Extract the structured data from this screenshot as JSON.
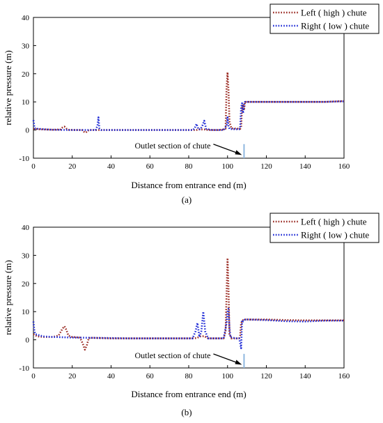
{
  "colors": {
    "left": "#9a2a22",
    "right": "#1f2bd6",
    "outlet_line": "#8fb7df",
    "axis": "#000000"
  },
  "chart_data": [
    {
      "type": "line",
      "panel_label": "(a)",
      "xlabel": "Distance from entrance end (m)",
      "ylabel": "relative pressure (m)",
      "xlim": [
        0,
        160
      ],
      "ylim": [
        -10,
        40
      ],
      "x_ticks": [
        0,
        20,
        40,
        60,
        80,
        100,
        120,
        140,
        160
      ],
      "y_ticks": [
        -10,
        0,
        10,
        20,
        30,
        40
      ],
      "grid": false,
      "legend_position": "top-right",
      "annotation": {
        "text": "Outlet section of chute",
        "x": 108.5,
        "y": -6
      },
      "outlet_x": 108.5,
      "series": [
        {
          "name": "Left ( high ) chute",
          "color_key": "left",
          "points": [
            [
              0,
              0.4
            ],
            [
              5,
              0.2
            ],
            [
              10,
              0.1
            ],
            [
              14,
              0.2
            ],
            [
              15,
              0.9
            ],
            [
              16,
              1.2
            ],
            [
              17,
              0.5
            ],
            [
              18,
              0.1
            ],
            [
              22,
              0.0
            ],
            [
              25,
              0.0
            ],
            [
              26,
              -0.6
            ],
            [
              27,
              -0.9
            ],
            [
              28,
              -0.2
            ],
            [
              29,
              0.0
            ],
            [
              40,
              0.0
            ],
            [
              60,
              0.0
            ],
            [
              80,
              0.0
            ],
            [
              84,
              0.0
            ],
            [
              85,
              0.3
            ],
            [
              86,
              0.2
            ],
            [
              88,
              0.2
            ],
            [
              90,
              0.0
            ],
            [
              95,
              0.0
            ],
            [
              98,
              0.2
            ],
            [
              99,
              0.5
            ],
            [
              99.5,
              15
            ],
            [
              100,
              20.5
            ],
            [
              100.5,
              14
            ],
            [
              101,
              3
            ],
            [
              102,
              0.6
            ],
            [
              105,
              0.5
            ],
            [
              106.5,
              0.4
            ],
            [
              107,
              1
            ],
            [
              107.5,
              8
            ],
            [
              108,
              9
            ],
            [
              108.5,
              7
            ],
            [
              109,
              10
            ],
            [
              110,
              10
            ],
            [
              120,
              10
            ],
            [
              130,
              10
            ],
            [
              140,
              10
            ],
            [
              150,
              10
            ],
            [
              160,
              10.3
            ]
          ]
        },
        {
          "name": "Right ( low ) chute",
          "color_key": "right",
          "points": [
            [
              0,
              3.5
            ],
            [
              0.5,
              1
            ],
            [
              1,
              0.5
            ],
            [
              5,
              0.3
            ],
            [
              10,
              0.1
            ],
            [
              20,
              0.0
            ],
            [
              32,
              0.0
            ],
            [
              33,
              1.5
            ],
            [
              33.5,
              4.5
            ],
            [
              34,
              0.5
            ],
            [
              35,
              0.0
            ],
            [
              50,
              0.0
            ],
            [
              70,
              0.0
            ],
            [
              82,
              0.0
            ],
            [
              83,
              0.5
            ],
            [
              84,
              2.2
            ],
            [
              85,
              0.3
            ],
            [
              86,
              0.2
            ],
            [
              87,
              1.5
            ],
            [
              88,
              3.3
            ],
            [
              89,
              0.4
            ],
            [
              92,
              0.0
            ],
            [
              98,
              0.0
            ],
            [
              99.5,
              1.5
            ],
            [
              100,
              4.5
            ],
            [
              100.5,
              1.5
            ],
            [
              101,
              0.4
            ],
            [
              104,
              0.3
            ],
            [
              106,
              0.3
            ],
            [
              106.5,
              0.6
            ],
            [
              107,
              8
            ],
            [
              107.5,
              9.5
            ],
            [
              108,
              6
            ],
            [
              108.5,
              9
            ],
            [
              109,
              10
            ],
            [
              110,
              10
            ],
            [
              120,
              10
            ],
            [
              130,
              10
            ],
            [
              140,
              10
            ],
            [
              150,
              10
            ],
            [
              160,
              10.2
            ]
          ]
        }
      ],
      "legend": [
        {
          "label": "Left ( high ) chute",
          "color_key": "left"
        },
        {
          "label": "Right ( low ) chute",
          "color_key": "right"
        }
      ]
    },
    {
      "type": "line",
      "panel_label": "(b)",
      "xlabel": "Distance from entrance end (m)",
      "ylabel": "relative pressure (m)",
      "xlim": [
        0,
        160
      ],
      "ylim": [
        -10,
        40
      ],
      "x_ticks": [
        0,
        20,
        40,
        60,
        80,
        100,
        120,
        140,
        160
      ],
      "y_ticks": [
        -10,
        0,
        10,
        20,
        30,
        40
      ],
      "grid": false,
      "legend_position": "top-right",
      "annotation": {
        "text": "Outlet section of chute",
        "x": 108.5,
        "y": -6
      },
      "outlet_x": 108.5,
      "series": [
        {
          "name": "Left ( high ) chute",
          "color_key": "left",
          "points": [
            [
              0,
              2
            ],
            [
              2,
              1.2
            ],
            [
              5,
              1
            ],
            [
              10,
              1
            ],
            [
              13,
              1.5
            ],
            [
              15,
              4
            ],
            [
              16,
              4.8
            ],
            [
              17,
              3.5
            ],
            [
              18,
              1.5
            ],
            [
              20,
              1
            ],
            [
              24,
              0.8
            ],
            [
              25.5,
              -1.5
            ],
            [
              26.5,
              -3.5
            ],
            [
              27.5,
              -2
            ],
            [
              28.5,
              0.6
            ],
            [
              30,
              0.7
            ],
            [
              40,
              0.5
            ],
            [
              60,
              0.5
            ],
            [
              80,
              0.5
            ],
            [
              84,
              0.6
            ],
            [
              86,
              1.2
            ],
            [
              88,
              1.3
            ],
            [
              90,
              0.5
            ],
            [
              98,
              0.5
            ],
            [
              99,
              3
            ],
            [
              100,
              29
            ],
            [
              100.5,
              18
            ],
            [
              101,
              2
            ],
            [
              102,
              0.5
            ],
            [
              106,
              0.5
            ],
            [
              106.5,
              1.5
            ],
            [
              107,
              6
            ],
            [
              108,
              7
            ],
            [
              109,
              7.2
            ],
            [
              110,
              7.2
            ],
            [
              120,
              7.2
            ],
            [
              130,
              7
            ],
            [
              140,
              6.9
            ],
            [
              150,
              6.9
            ],
            [
              160,
              6.9
            ]
          ]
        },
        {
          "name": "Right ( low ) chute",
          "color_key": "right",
          "points": [
            [
              0,
              6.5
            ],
            [
              0.5,
              3
            ],
            [
              1,
              2
            ],
            [
              5,
              1.2
            ],
            [
              10,
              1
            ],
            [
              20,
              0.8
            ],
            [
              30,
              0.7
            ],
            [
              50,
              0.5
            ],
            [
              70,
              0.5
            ],
            [
              82,
              0.5
            ],
            [
              83.5,
              3
            ],
            [
              84.5,
              6
            ],
            [
              85.5,
              1
            ],
            [
              86.5,
              3
            ],
            [
              87.5,
              10
            ],
            [
              88.5,
              3
            ],
            [
              90,
              0.5
            ],
            [
              98,
              0.5
            ],
            [
              99.5,
              6
            ],
            [
              100,
              10
            ],
            [
              100.5,
              11
            ],
            [
              101,
              4
            ],
            [
              101.5,
              1
            ],
            [
              104,
              0.5
            ],
            [
              106,
              0.5
            ],
            [
              107,
              -3
            ],
            [
              107.5,
              7
            ],
            [
              108,
              6.5
            ],
            [
              109,
              7.2
            ],
            [
              110,
              7.2
            ],
            [
              120,
              7
            ],
            [
              130,
              6.6
            ],
            [
              140,
              6.5
            ],
            [
              150,
              6.8
            ],
            [
              160,
              6.8
            ]
          ]
        }
      ],
      "legend": [
        {
          "label": "Left ( high ) chute",
          "color_key": "left"
        },
        {
          "label": "Right ( low ) chute",
          "color_key": "right"
        }
      ]
    }
  ]
}
